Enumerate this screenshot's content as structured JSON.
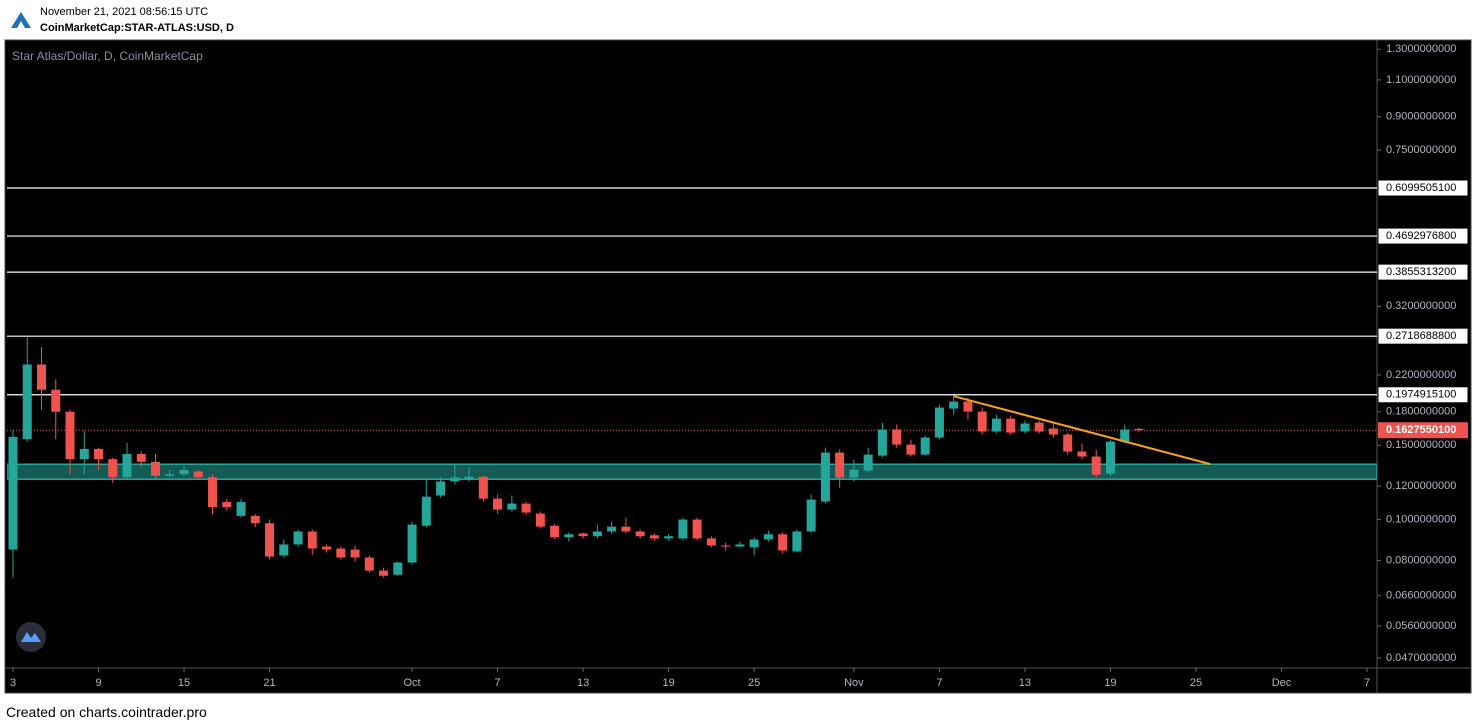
{
  "header": {
    "timestamp": "November 21, 2021 08:56:15 UTC",
    "symbol": "CoinMarketCap:STAR-ATLAS:USD, D"
  },
  "footer": "Created on charts.cointrader.pro",
  "chart_data": {
    "type": "candlestick",
    "title": "Star Atlas/Dollar, D, CoinMarketCap",
    "log_scale": true,
    "up_color": "#26a69a",
    "down_color": "#ef5350",
    "ylim": [
      0.0445,
      1.36
    ],
    "yticks": [
      {
        "value": 1.3,
        "label": "1.3000000000"
      },
      {
        "value": 1.1,
        "label": "1.1000000000"
      },
      {
        "value": 0.9,
        "label": "0.9000000000"
      },
      {
        "value": 0.75,
        "label": "0.7500000000"
      },
      {
        "value": 0.32,
        "label": "0.3200000000"
      },
      {
        "value": 0.22,
        "label": "0.2200000000"
      },
      {
        "value": 0.18,
        "label": "0.1800000000"
      },
      {
        "value": 0.15,
        "label": "0.1500000000"
      },
      {
        "value": 0.12,
        "label": "0.1200000000"
      },
      {
        "value": 0.1,
        "label": "0.1000000000"
      },
      {
        "value": 0.08,
        "label": "0.0800000000"
      },
      {
        "value": 0.066,
        "label": "0.0660000000"
      },
      {
        "value": 0.056,
        "label": "0.0560000000"
      },
      {
        "value": 0.047,
        "label": "0.0470000000"
      }
    ],
    "xlim": [
      "2021-09-03",
      "2021-12-07"
    ],
    "xticks": [
      {
        "value": "2021-09-03",
        "label": "3"
      },
      {
        "value": "2021-09-09",
        "label": "9"
      },
      {
        "value": "2021-09-15",
        "label": "15"
      },
      {
        "value": "2021-09-21",
        "label": "21"
      },
      {
        "value": "2021-10-01",
        "label": "Oct"
      },
      {
        "value": "2021-10-07",
        "label": "7"
      },
      {
        "value": "2021-10-13",
        "label": "13"
      },
      {
        "value": "2021-10-19",
        "label": "19"
      },
      {
        "value": "2021-10-25",
        "label": "25"
      },
      {
        "value": "2021-11-01",
        "label": "Nov"
      },
      {
        "value": "2021-11-07",
        "label": "7"
      },
      {
        "value": "2021-11-13",
        "label": "13"
      },
      {
        "value": "2021-11-19",
        "label": "19"
      },
      {
        "value": "2021-11-25",
        "label": "25"
      },
      {
        "value": "2021-12-01",
        "label": "Dec"
      },
      {
        "value": "2021-12-07",
        "label": "7"
      }
    ],
    "x": [
      "2021-09-03",
      "2021-09-04",
      "2021-09-05",
      "2021-09-06",
      "2021-09-07",
      "2021-09-08",
      "2021-09-09",
      "2021-09-10",
      "2021-09-11",
      "2021-09-12",
      "2021-09-13",
      "2021-09-14",
      "2021-09-15",
      "2021-09-16",
      "2021-09-17",
      "2021-09-18",
      "2021-09-19",
      "2021-09-20",
      "2021-09-21",
      "2021-09-22",
      "2021-09-23",
      "2021-09-24",
      "2021-09-25",
      "2021-09-26",
      "2021-09-27",
      "2021-09-28",
      "2021-09-29",
      "2021-09-30",
      "2021-10-01",
      "2021-10-02",
      "2021-10-03",
      "2021-10-04",
      "2021-10-05",
      "2021-10-06",
      "2021-10-07",
      "2021-10-08",
      "2021-10-09",
      "2021-10-10",
      "2021-10-11",
      "2021-10-12",
      "2021-10-13",
      "2021-10-14",
      "2021-10-15",
      "2021-10-16",
      "2021-10-17",
      "2021-10-18",
      "2021-10-19",
      "2021-10-20",
      "2021-10-21",
      "2021-10-22",
      "2021-10-23",
      "2021-10-24",
      "2021-10-25",
      "2021-10-26",
      "2021-10-27",
      "2021-10-28",
      "2021-10-29",
      "2021-10-30",
      "2021-10-31",
      "2021-11-01",
      "2021-11-02",
      "2021-11-03",
      "2021-11-04",
      "2021-11-05",
      "2021-11-06",
      "2021-11-07",
      "2021-11-08",
      "2021-11-09",
      "2021-11-10",
      "2021-11-11",
      "2021-11-12",
      "2021-11-13",
      "2021-11-14",
      "2021-11-15",
      "2021-11-16",
      "2021-11-17",
      "2021-11-18",
      "2021-11-19",
      "2021-11-20",
      "2021-11-21"
    ],
    "open": [
      0.0849,
      0.155,
      0.233,
      0.203,
      0.18,
      0.139,
      0.147,
      0.139,
      0.126,
      0.143,
      0.137,
      0.127,
      0.128,
      0.13,
      0.126,
      0.11,
      0.102,
      0.102,
      0.098,
      0.0822,
      0.0873,
      0.0937,
      0.0863,
      0.0854,
      0.0849,
      0.0813,
      0.0757,
      0.074,
      0.0791,
      0.0967,
      0.114,
      0.1231,
      0.1244,
      0.1263,
      0.1121,
      0.1056,
      0.1091,
      0.1033,
      0.0967,
      0.0908,
      0.0927,
      0.0913,
      0.0937,
      0.0962,
      0.0937,
      0.0918,
      0.0902,
      0.0902,
      0.1,
      0.0902,
      0.0868,
      0.0863,
      0.0859,
      0.0897,
      0.0923,
      0.084,
      0.0937,
      0.1103,
      0.1441,
      0.1258,
      0.1306,
      0.1417,
      0.1634,
      0.1505,
      0.1425,
      0.1564,
      0.1832,
      0.1903,
      0.1802,
      0.1616,
      0.1734,
      0.1616,
      0.1697,
      0.1643,
      0.159,
      0.1449,
      0.141,
      0.1284,
      0.153,
      0.164
    ],
    "high": [
      0.163,
      0.27,
      0.256,
      0.215,
      0.182,
      0.162,
      0.148,
      0.14,
      0.152,
      0.145,
      0.143,
      0.131,
      0.134,
      0.131,
      0.128,
      0.112,
      0.112,
      0.103,
      0.1,
      0.0897,
      0.0947,
      0.0947,
      0.0873,
      0.0863,
      0.0868,
      0.0822,
      0.0769,
      0.0795,
      0.0989,
      0.124,
      0.126,
      0.1349,
      0.1326,
      0.127,
      0.1146,
      0.114,
      0.1103,
      0.1045,
      0.0978,
      0.0932,
      0.0932,
      0.0973,
      0.0989,
      0.1011,
      0.0947,
      0.0927,
      0.0923,
      0.1011,
      0.1011,
      0.0913,
      0.0882,
      0.0887,
      0.0908,
      0.0942,
      0.0932,
      0.0947,
      0.1146,
      0.148,
      0.1465,
      0.1387,
      0.148,
      0.1697,
      0.1679,
      0.1547,
      0.1581,
      0.1872,
      0.1966,
      0.1945,
      0.1842,
      0.1772,
      0.1763,
      0.1716,
      0.1716,
      0.1688,
      0.1607,
      0.1514,
      0.1465,
      0.1547,
      0.1679,
      0.165
    ],
    "low": [
      0.0728,
      0.153,
      0.182,
      0.155,
      0.128,
      0.128,
      0.131,
      0.122,
      0.124,
      0.133,
      0.125,
      0.126,
      0.127,
      0.125,
      0.103,
      0.105,
      0.101,
      0.096,
      0.0804,
      0.0813,
      0.0863,
      0.0826,
      0.0835,
      0.0804,
      0.0795,
      0.0749,
      0.0729,
      0.0736,
      0.0782,
      0.0957,
      0.1127,
      0.121,
      0.1231,
      0.1103,
      0.1033,
      0.1045,
      0.1027,
      0.0952,
      0.0897,
      0.0887,
      0.0902,
      0.0902,
      0.0923,
      0.0927,
      0.0902,
      0.0892,
      0.0892,
      0.0892,
      0.0892,
      0.0859,
      0.0845,
      0.0859,
      0.0822,
      0.0887,
      0.0831,
      0.0835,
      0.0932,
      0.1091,
      0.119,
      0.1231,
      0.1291,
      0.1403,
      0.148,
      0.141,
      0.1417,
      0.1547,
      0.1772,
      0.1725,
      0.159,
      0.1599,
      0.159,
      0.1599,
      0.1599,
      0.1564,
      0.1425,
      0.1387,
      0.1258,
      0.127,
      0.1514,
      0.161
    ],
    "close": [
      0.157,
      0.233,
      0.203,
      0.18,
      0.139,
      0.147,
      0.139,
      0.126,
      0.143,
      0.137,
      0.127,
      0.128,
      0.131,
      0.126,
      0.107,
      0.107,
      0.11,
      0.098,
      0.0817,
      0.0873,
      0.0937,
      0.0854,
      0.0849,
      0.0813,
      0.0813,
      0.0757,
      0.0736,
      0.0791,
      0.0973,
      0.1133,
      0.1231,
      0.1258,
      0.1263,
      0.1121,
      0.1056,
      0.1091,
      0.1039,
      0.0962,
      0.0908,
      0.0923,
      0.0913,
      0.0937,
      0.0962,
      0.0937,
      0.0913,
      0.0902,
      0.0913,
      0.1,
      0.0902,
      0.0868,
      0.0863,
      0.0873,
      0.0897,
      0.0923,
      0.0845,
      0.0937,
      0.1115,
      0.1441,
      0.1258,
      0.1313,
      0.1425,
      0.1634,
      0.1505,
      0.1425,
      0.1564,
      0.1842,
      0.1903,
      0.1802,
      0.1616,
      0.1734,
      0.1607,
      0.1688,
      0.1616,
      0.159,
      0.1449,
      0.141,
      0.1277,
      0.153,
      0.1634,
      0.1628
    ],
    "levels": [
      {
        "value": 0.60995051,
        "label": "0.6099505100"
      },
      {
        "value": 0.46929768,
        "label": "0.4692976800"
      },
      {
        "value": 0.38553132,
        "label": "0.3855313200"
      },
      {
        "value": 0.27186888,
        "label": "0.2718688800"
      },
      {
        "value": 0.19749151,
        "label": "0.1974915100"
      }
    ],
    "last_price": {
      "value": 0.16275501,
      "label": "0.1627550100"
    },
    "zone": {
      "range": [
        0.1246,
        0.1352
      ],
      "color": "#26a69a"
    },
    "trendline": {
      "x": [
        "2021-11-08",
        "2021-11-26"
      ],
      "y": [
        0.196,
        0.1353
      ],
      "color": "#f7a21b"
    }
  }
}
